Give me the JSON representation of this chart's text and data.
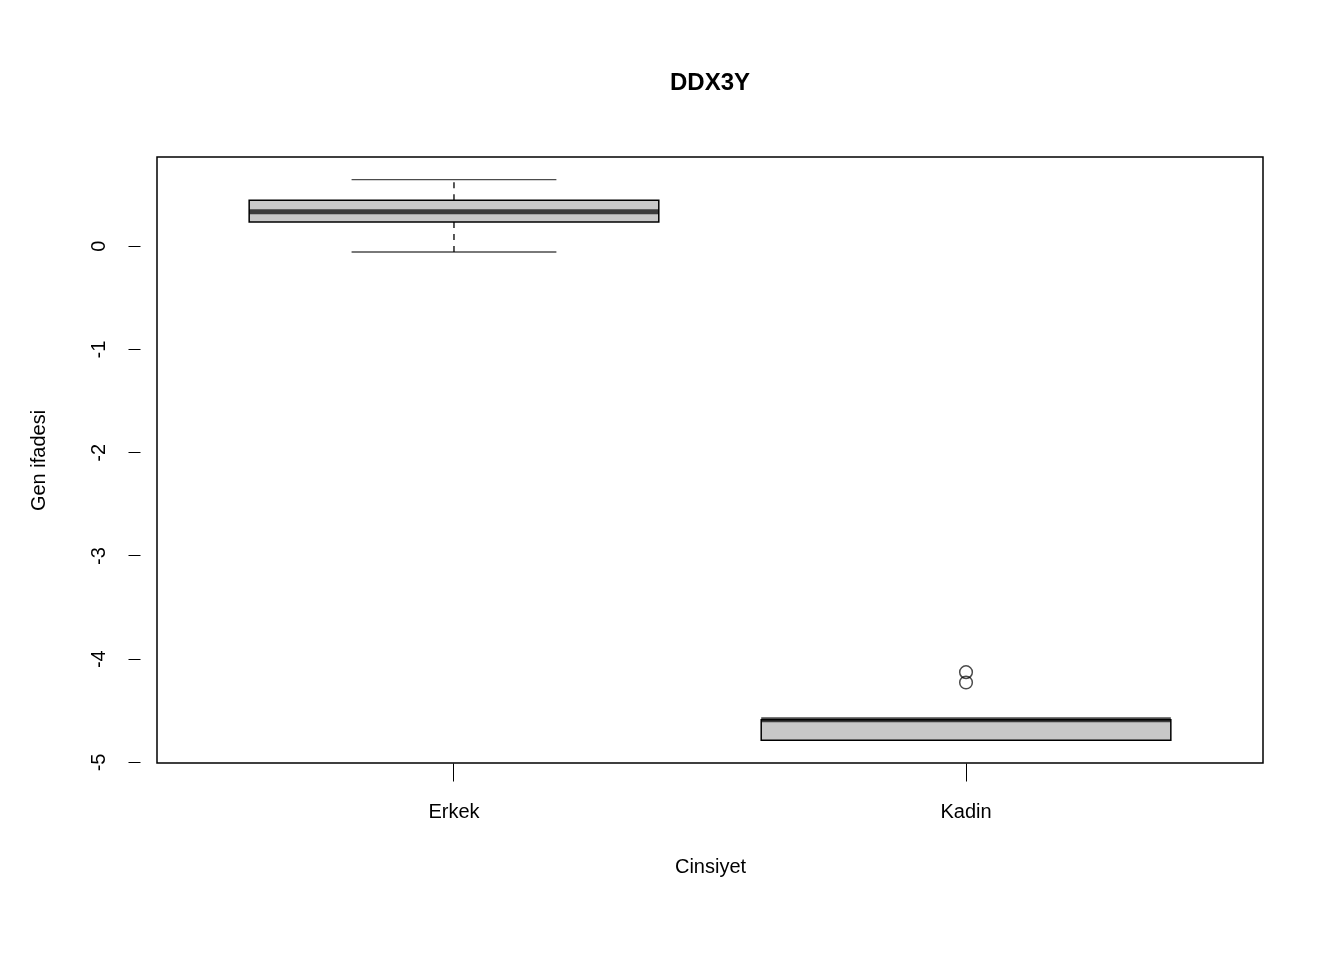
{
  "chart_data": {
    "type": "box",
    "title": "DDX3Y",
    "xlabel": "Cinsiyet",
    "ylabel": "Gen ifadesi",
    "categories": [
      "Erkek",
      "Kadin"
    ],
    "series": [
      {
        "color": "#c8c8c8",
        "boxes": [
          {
            "low": -0.06,
            "q1": 0.23,
            "median": 0.33,
            "q3": 0.44,
            "high": 0.64
          },
          {
            "low": -4.79,
            "q1": -4.79,
            "median": -4.59,
            "q3": -4.59,
            "high": -4.59,
            "outliers": [
              -4.13,
              -4.23
            ]
          }
        ]
      }
    ],
    "ylim": [
      -5.01,
      0.86
    ],
    "yticks": [
      -5,
      -4,
      -3,
      -2,
      -1,
      0
    ]
  }
}
